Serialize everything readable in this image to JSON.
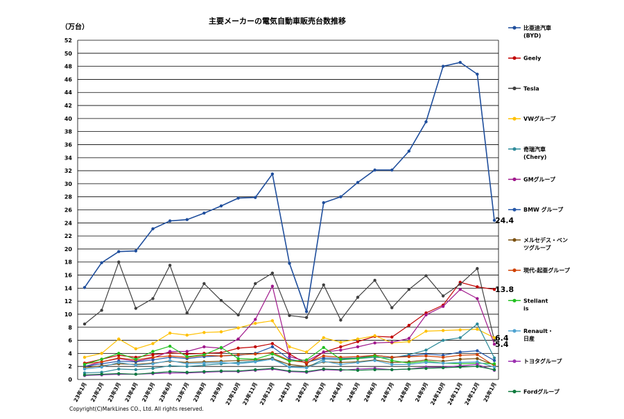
{
  "chart_data": {
    "type": "line",
    "title": "主要メーカーの電気自動車販売台数推移",
    "ylabel": "（万台）",
    "ylim": [
      0,
      52
    ],
    "ytick_step": 2,
    "grid": true,
    "legend_position": "right",
    "categories": [
      "23年1月",
      "23年2月",
      "23年3月",
      "23年4月",
      "23年5月",
      "23年6月",
      "23年7月",
      "23年8月",
      "23年9月",
      "23年10月",
      "23年11月",
      "23年12月",
      "24年1月",
      "24年2月",
      "24年3月",
      "24年4月",
      "24年5月",
      "24年6月",
      "24年7月",
      "24年8月",
      "24年9月",
      "24年10月",
      "24年11月",
      "24年12月",
      "25年1月"
    ],
    "series": [
      {
        "name": "比亜迪汽車 (BYD)",
        "color": "#1f4e9c",
        "values": [
          14.1,
          17.9,
          19.6,
          19.7,
          23.1,
          24.3,
          24.5,
          25.5,
          26.6,
          27.8,
          27.9,
          31.5,
          17.8,
          10.4,
          27.1,
          28.0,
          30.2,
          32.1,
          32.1,
          35.0,
          39.5,
          48.0,
          48.6,
          46.8,
          24.4
        ]
      },
      {
        "name": "Geely",
        "color": "#c00000",
        "values": [
          2.5,
          3.1,
          3.7,
          3.4,
          3.8,
          4.1,
          3.9,
          4.0,
          4.1,
          4.8,
          5.0,
          5.5,
          3.9,
          2.4,
          4.2,
          5.0,
          5.8,
          6.6,
          6.5,
          8.3,
          10.2,
          11.4,
          14.9,
          14.2,
          13.8
        ]
      },
      {
        "name": "Tesla",
        "color": "#404040",
        "values": [
          8.5,
          10.6,
          18.0,
          10.9,
          12.4,
          17.5,
          10.2,
          14.7,
          12.1,
          9.9,
          14.7,
          16.3,
          9.8,
          9.5,
          14.5,
          9.1,
          12.6,
          15.2,
          11.0,
          13.8,
          15.9,
          12.8,
          14.6,
          17.0,
          6.0
        ]
      },
      {
        "name": "VWグループ",
        "color": "#ffc000",
        "values": [
          3.4,
          4.0,
          6.2,
          4.7,
          5.5,
          7.1,
          6.8,
          7.2,
          7.3,
          7.9,
          8.6,
          9.0,
          5.0,
          4.2,
          6.4,
          5.7,
          6.2,
          6.7,
          5.6,
          5.8,
          7.4,
          7.5,
          7.6,
          7.7,
          6.4
        ]
      },
      {
        "name": "奇瑞汽車 (Chery)",
        "color": "#2e8b9a",
        "values": [
          1.0,
          1.1,
          1.6,
          1.5,
          1.7,
          2.1,
          2.0,
          2.2,
          2.4,
          2.6,
          2.8,
          3.3,
          1.9,
          1.8,
          3.1,
          3.0,
          3.2,
          3.4,
          3.3,
          3.8,
          4.5,
          6.0,
          6.4,
          8.5,
          3.3
        ]
      },
      {
        "name": "GMグループ",
        "color": "#a0188c",
        "values": [
          2.0,
          2.7,
          3.2,
          2.8,
          3.3,
          4.3,
          4.3,
          5.0,
          4.8,
          6.2,
          9.2,
          14.3,
          3.5,
          2.8,
          4.2,
          4.5,
          5.0,
          5.6,
          5.7,
          6.3,
          9.9,
          11.2,
          13.8,
          12.4,
          5.4
        ]
      },
      {
        "name": "BMW グループ",
        "color": "#2457a8",
        "values": [
          2.0,
          2.4,
          2.8,
          2.7,
          3.0,
          3.4,
          3.2,
          3.5,
          3.6,
          3.7,
          4.0,
          5.0,
          3.1,
          2.6,
          3.3,
          3.2,
          3.3,
          3.7,
          3.4,
          3.6,
          3.9,
          3.7,
          4.2,
          4.4,
          2.9
        ]
      },
      {
        "name": "メルセデス・ベンツグループ",
        "color": "#7a5010",
        "values": [
          1.8,
          2.1,
          2.4,
          2.3,
          2.5,
          2.8,
          2.6,
          2.7,
          2.8,
          2.9,
          3.0,
          3.2,
          2.3,
          2.0,
          2.7,
          2.6,
          2.7,
          3.0,
          2.6,
          2.7,
          3.0,
          2.8,
          3.1,
          3.2,
          2.2
        ]
      },
      {
        "name": "現代-起亜グループ",
        "color": "#d04000",
        "values": [
          2.4,
          2.7,
          3.3,
          3.0,
          3.4,
          3.6,
          3.4,
          3.7,
          3.6,
          3.8,
          3.9,
          4.1,
          2.9,
          2.6,
          3.6,
          3.4,
          3.5,
          3.7,
          3.4,
          3.5,
          3.6,
          3.4,
          3.7,
          3.8,
          2.1
        ]
      },
      {
        "name": "Stellantis",
        "color": "#22c020",
        "values": [
          2.3,
          3.1,
          4.0,
          3.1,
          4.3,
          5.1,
          3.5,
          3.8,
          4.9,
          3.2,
          3.1,
          3.9,
          2.8,
          3.0,
          4.9,
          3.1,
          3.2,
          3.6,
          2.9,
          2.5,
          2.8,
          2.5,
          2.4,
          2.5,
          2.4
        ]
      },
      {
        "name": "Renault・日産",
        "color": "#4fa3d0",
        "values": [
          1.6,
          1.9,
          2.6,
          2.2,
          2.4,
          2.9,
          2.4,
          2.5,
          2.6,
          2.4,
          2.7,
          3.1,
          1.9,
          1.8,
          2.8,
          2.3,
          2.6,
          2.9,
          2.3,
          2.3,
          2.6,
          2.5,
          2.6,
          2.7,
          1.9
        ]
      },
      {
        "name": "トヨタグループ",
        "color": "#9b30b0",
        "values": [
          0.6,
          0.7,
          0.8,
          0.8,
          0.9,
          1.0,
          1.0,
          1.1,
          1.2,
          1.2,
          1.4,
          1.6,
          1.2,
          1.1,
          1.5,
          1.4,
          1.6,
          1.7,
          1.5,
          1.6,
          1.9,
          1.9,
          2.1,
          2.3,
          1.4
        ]
      },
      {
        "name": "Fordグループ",
        "color": "#0e7a3e",
        "values": [
          0.7,
          0.8,
          0.9,
          0.8,
          1.0,
          1.2,
          1.1,
          1.2,
          1.3,
          1.3,
          1.5,
          1.7,
          1.3,
          1.2,
          1.6,
          1.5,
          1.4,
          1.5,
          1.5,
          1.6,
          1.7,
          1.8,
          1.9,
          2.0,
          1.5
        ]
      }
    ],
    "annotations": [
      {
        "text": "24.4",
        "series": 0,
        "index": 24
      },
      {
        "text": "13.8",
        "series": 1,
        "index": 24
      },
      {
        "text": "6.4",
        "series": 3,
        "index": 24
      },
      {
        "text": "5.4",
        "series": 5,
        "index": 24
      }
    ],
    "copyright": "Copyright(C)MarkLines CO., Ltd. All rights reserved."
  }
}
